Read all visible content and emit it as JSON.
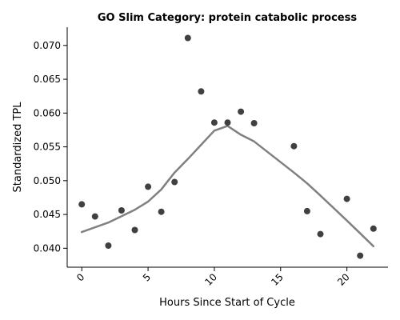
{
  "chart_data": {
    "type": "scatter",
    "title": "GO Slim Category: protein catabolic process",
    "xlabel": "Hours Since Start of Cycle",
    "ylabel": "Standardized TPL",
    "xlim": [
      -1.1,
      23.1
    ],
    "ylim": [
      0.0372,
      0.0727
    ],
    "xticks": [
      0,
      5,
      10,
      15,
      20
    ],
    "yticks": [
      0.04,
      0.045,
      0.05,
      0.055,
      0.06,
      0.065,
      0.07
    ],
    "ytick_labels": [
      "0.040",
      "0.045",
      "0.050",
      "0.055",
      "0.060",
      "0.065",
      "0.070"
    ],
    "grid": false,
    "points": [
      {
        "x": 0,
        "y": 0.0465
      },
      {
        "x": 1,
        "y": 0.0447
      },
      {
        "x": 2,
        "y": 0.0404
      },
      {
        "x": 3,
        "y": 0.0456
      },
      {
        "x": 4,
        "y": 0.0427
      },
      {
        "x": 5,
        "y": 0.0491
      },
      {
        "x": 6,
        "y": 0.0454
      },
      {
        "x": 7,
        "y": 0.0498
      },
      {
        "x": 8,
        "y": 0.0711
      },
      {
        "x": 9,
        "y": 0.0632
      },
      {
        "x": 10,
        "y": 0.0586
      },
      {
        "x": 11,
        "y": 0.0586
      },
      {
        "x": 12,
        "y": 0.0602
      },
      {
        "x": 13,
        "y": 0.0585
      },
      {
        "x": 16,
        "y": 0.0551
      },
      {
        "x": 17,
        "y": 0.0455
      },
      {
        "x": 18,
        "y": 0.0421
      },
      {
        "x": 20,
        "y": 0.0473
      },
      {
        "x": 21,
        "y": 0.0389
      },
      {
        "x": 22,
        "y": 0.0429
      }
    ],
    "trend": [
      {
        "x": 0,
        "y": 0.0424
      },
      {
        "x": 2,
        "y": 0.0438
      },
      {
        "x": 4,
        "y": 0.0457
      },
      {
        "x": 5,
        "y": 0.0469
      },
      {
        "x": 6,
        "y": 0.0487
      },
      {
        "x": 7,
        "y": 0.0512
      },
      {
        "x": 8,
        "y": 0.0532
      },
      {
        "x": 9,
        "y": 0.0553
      },
      {
        "x": 10,
        "y": 0.0574
      },
      {
        "x": 11,
        "y": 0.0581
      },
      {
        "x": 12,
        "y": 0.0568
      },
      {
        "x": 13,
        "y": 0.0558
      },
      {
        "x": 16,
        "y": 0.0512
      },
      {
        "x": 17,
        "y": 0.0496
      },
      {
        "x": 18,
        "y": 0.0478
      },
      {
        "x": 20,
        "y": 0.0441
      },
      {
        "x": 21,
        "y": 0.0422
      },
      {
        "x": 22,
        "y": 0.0403
      }
    ],
    "colors": {
      "points": "#2b2b2b",
      "trend": "#808080"
    }
  }
}
